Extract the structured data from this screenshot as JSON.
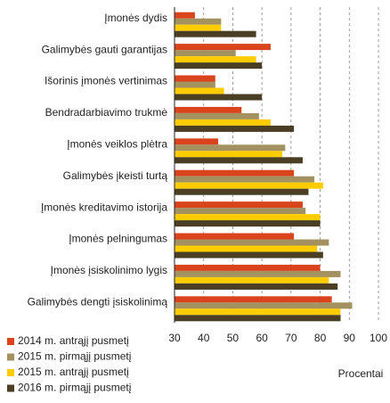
{
  "chart_data": {
    "type": "hbar",
    "categories": [
      "Įmonės dydis",
      "Galimybės gauti garantijas",
      "Išorinis įmonės vertinimas",
      "Bendradarbiavimo trukmė",
      "Įmonės veiklos plėtra",
      "Galimybės įkeisti turtą",
      "Įmonės kreditavimo istorija",
      "Įmonės pelningumas",
      "Įmonės įsiskolinimo lygis",
      "Galimybės dengti įsiskolinimą"
    ],
    "series": [
      {
        "name": "2014 m. antrąjį pusmetį",
        "color": "#d9441c",
        "values": [
          37,
          63,
          44,
          53,
          45,
          71,
          74,
          71,
          80,
          84
        ]
      },
      {
        "name": "2015 m. pirmąjį pusmetį",
        "color": "#a39160",
        "values": [
          46,
          51,
          44,
          59,
          68,
          78,
          75,
          83,
          87,
          91
        ]
      },
      {
        "name": "2015 m. antrąjį pusmetį",
        "color": "#ffcc00",
        "values": [
          46,
          58,
          47,
          63,
          67,
          81,
          80,
          79,
          83,
          87
        ]
      },
      {
        "name": "2016 m. pirmąjį pusmetį",
        "color": "#4a3f24",
        "values": [
          58,
          60,
          60,
          71,
          74,
          76,
          80,
          81,
          86,
          87
        ]
      }
    ],
    "xlabel": "Procentai",
    "xlim": [
      30,
      100
    ],
    "xticks": [
      30,
      40,
      50,
      60,
      70,
      80,
      90,
      100
    ],
    "grid": true
  }
}
